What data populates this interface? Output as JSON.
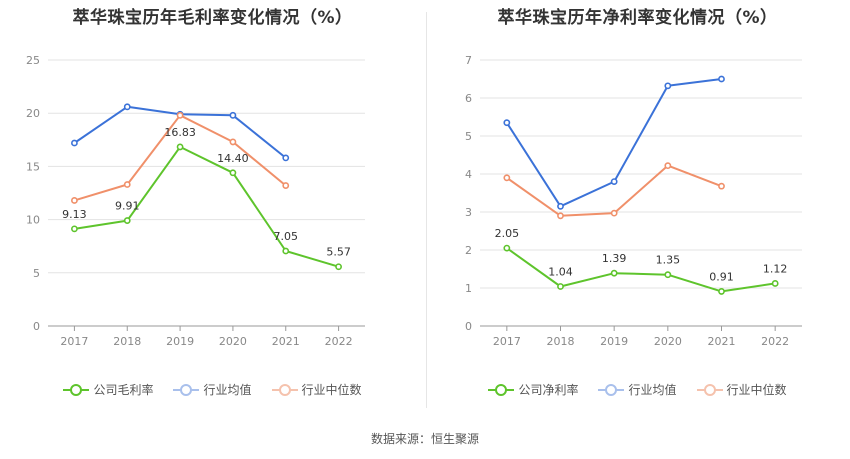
{
  "source": "数据来源：恒生聚源",
  "chart_data": [
    {
      "type": "line",
      "title": "萃华珠宝历年毛利率变化情况（%）",
      "x": [
        "2017",
        "2018",
        "2019",
        "2020",
        "2021",
        "2022"
      ],
      "ylim": [
        0,
        25
      ],
      "yticks": [
        "0",
        "5",
        "10",
        "15",
        "20",
        "25"
      ],
      "grid": true,
      "legend_position": "bottom",
      "series": [
        {
          "name": "公司毛利率",
          "color": "#5ec42c",
          "values": [
            9.13,
            9.91,
            16.83,
            14.4,
            7.05,
            5.57
          ],
          "labels": [
            "9.13",
            "9.91",
            "16.83",
            "14.40",
            "7.05",
            "5.57"
          ]
        },
        {
          "name": "行业均值",
          "color": "#3b72d8",
          "values": [
            17.2,
            20.6,
            19.9,
            19.8,
            15.8,
            null
          ]
        },
        {
          "name": "行业中位数",
          "color": "#f0906a",
          "values": [
            11.8,
            13.3,
            19.8,
            17.3,
            13.2,
            null
          ]
        }
      ]
    },
    {
      "type": "line",
      "title": "萃华珠宝历年净利率变化情况（%）",
      "x": [
        "2017",
        "2018",
        "2019",
        "2020",
        "2021",
        "2022"
      ],
      "ylim": [
        0,
        7
      ],
      "yticks": [
        "0",
        "1",
        "2",
        "3",
        "4",
        "5",
        "6",
        "7"
      ],
      "grid": true,
      "legend_position": "bottom",
      "series": [
        {
          "name": "公司净利率",
          "color": "#5ec42c",
          "values": [
            2.05,
            1.04,
            1.39,
            1.35,
            0.91,
            1.12
          ],
          "labels": [
            "2.05",
            "1.04",
            "1.39",
            "1.35",
            "0.91",
            "1.12"
          ]
        },
        {
          "name": "行业均值",
          "color": "#3b72d8",
          "values": [
            5.35,
            3.15,
            3.8,
            6.32,
            6.5,
            null
          ]
        },
        {
          "name": "行业中位数",
          "color": "#f0906a",
          "values": [
            3.9,
            2.9,
            2.97,
            4.22,
            3.68,
            null
          ]
        }
      ]
    }
  ]
}
